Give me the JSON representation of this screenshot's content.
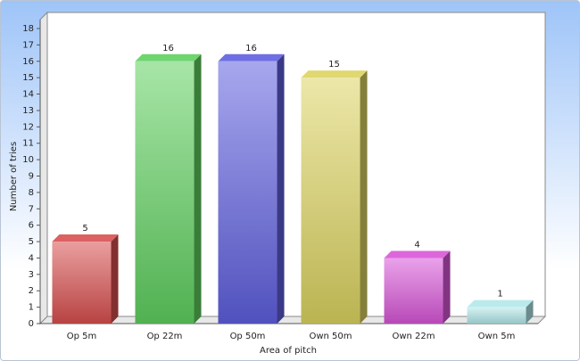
{
  "chart_data": {
    "type": "bar3d",
    "categories": [
      "Op 5m",
      "Op 22m",
      "Op 50m",
      "Own 50m",
      "Own 22m",
      "Own 5m"
    ],
    "values": [
      5,
      16,
      16,
      15,
      4,
      1
    ],
    "colors": [
      "#d84f4f",
      "#5fd05f",
      "#5f5fe0",
      "#dcd460",
      "#d856d8",
      "#b2e8ea"
    ],
    "x_label": "Area of pitch",
    "y_label": "Number of tries",
    "ylim": [
      0,
      18
    ],
    "yticks": [
      0,
      1,
      2,
      3,
      4,
      5,
      6,
      7,
      8,
      9,
      10,
      11,
      12,
      13,
      14,
      15,
      16,
      17,
      18
    ],
    "grid": false
  }
}
